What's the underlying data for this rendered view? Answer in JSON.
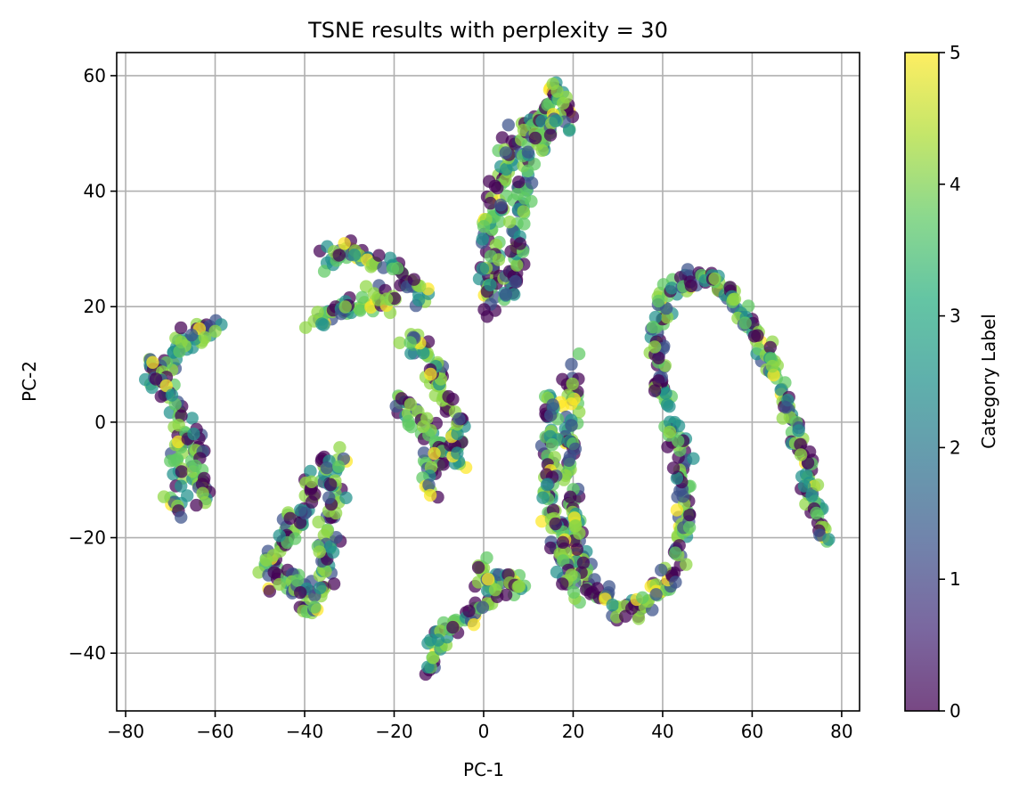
{
  "chart_data": {
    "type": "scatter",
    "title": "TSNE results with perplexity = 30",
    "xlabel": "PC-1",
    "ylabel": "PC-2",
    "xlim": [
      -82,
      84
    ],
    "ylim": [
      -50,
      64
    ],
    "xticks": [
      -80,
      -60,
      -40,
      -20,
      0,
      20,
      40,
      60,
      80
    ],
    "xtick_labels": [
      "−80",
      "−60",
      "−40",
      "−20",
      "0",
      "20",
      "40",
      "60",
      "80"
    ],
    "yticks": [
      -40,
      -20,
      0,
      20,
      40,
      60
    ],
    "ytick_labels": [
      "−40",
      "−20",
      "0",
      "20",
      "40",
      "60"
    ],
    "grid": true,
    "colorbar": {
      "label": "Category Label",
      "range": [
        0,
        5
      ],
      "ticks": [
        0,
        1,
        2,
        3,
        4,
        5
      ],
      "tick_labels": [
        "0",
        "1",
        "2",
        "3",
        "4",
        "5"
      ],
      "colormap": "viridis"
    },
    "clusters": [
      {
        "name": "left-arc",
        "path": [
          [
            -59,
            18
          ],
          [
            -63,
            16
          ],
          [
            -68,
            13
          ],
          [
            -72,
            10
          ],
          [
            -75,
            8
          ],
          [
            -73,
            7
          ],
          [
            -69,
            4
          ],
          [
            -67,
            0
          ],
          [
            -67,
            -4
          ],
          [
            -68,
            -9
          ],
          [
            -69,
            -14
          ],
          [
            -68,
            -15
          ]
        ],
        "width": 2.2
      },
      {
        "name": "left-bar",
        "path": [
          [
            -64,
            -2
          ],
          [
            -64,
            -7
          ],
          [
            -63,
            -11
          ],
          [
            -62,
            -14
          ]
        ],
        "width": 1.5
      },
      {
        "name": "lower-left-band",
        "path": [
          [
            -50,
            -25
          ],
          [
            -46,
            -22
          ],
          [
            -42,
            -17
          ],
          [
            -39,
            -12
          ],
          [
            -36,
            -8
          ],
          [
            -32,
            -6
          ]
        ],
        "width": 2.0
      },
      {
        "name": "lower-left-band-2",
        "path": [
          [
            -48,
            -28
          ],
          [
            -43,
            -27
          ],
          [
            -40,
            -30
          ],
          [
            -39,
            -33
          ],
          [
            -37,
            -28
          ],
          [
            -35,
            -22
          ],
          [
            -34,
            -16
          ],
          [
            -33,
            -10
          ]
        ],
        "width": 2.0
      },
      {
        "name": "upper-mid-arc",
        "path": [
          [
            -38,
            17
          ],
          [
            -34,
            19
          ],
          [
            -30,
            20
          ],
          [
            -26,
            21
          ],
          [
            -22,
            21
          ],
          [
            -19,
            20
          ]
        ],
        "width": 1.8
      },
      {
        "name": "upper-mid-arc-2",
        "path": [
          [
            -36,
            27
          ],
          [
            -32,
            29
          ],
          [
            -28,
            29
          ],
          [
            -24,
            28
          ],
          [
            -20,
            26
          ],
          [
            -16,
            24
          ],
          [
            -13,
            22
          ]
        ],
        "width": 1.8
      },
      {
        "name": "mid-snake",
        "path": [
          [
            -20,
            4
          ],
          [
            -17,
            2
          ],
          [
            -14,
            0
          ],
          [
            -11,
            -3
          ],
          [
            -9,
            -6
          ],
          [
            -7,
            -7
          ],
          [
            -5,
            -5
          ],
          [
            -6,
            0
          ],
          [
            -9,
            4
          ],
          [
            -11,
            8
          ],
          [
            -12,
            12
          ],
          [
            -15,
            14
          ],
          [
            -18,
            16
          ]
        ],
        "width": 2.0
      },
      {
        "name": "mid-snake-2",
        "path": [
          [
            -13,
            -6
          ],
          [
            -12,
            -9
          ],
          [
            -11,
            -12
          ]
        ],
        "width": 1.6
      },
      {
        "name": "top-column",
        "path": [
          [
            1,
            19
          ],
          [
            1,
            23
          ],
          [
            1,
            28
          ],
          [
            1,
            33
          ],
          [
            3,
            37
          ],
          [
            3,
            41
          ],
          [
            5,
            45
          ],
          [
            8,
            49
          ],
          [
            11,
            52
          ],
          [
            14,
            55
          ],
          [
            16,
            58
          ],
          [
            19,
            52
          ]
        ],
        "width": 2.0
      },
      {
        "name": "top-column-2",
        "path": [
          [
            5,
            20
          ],
          [
            6,
            23
          ],
          [
            7,
            27
          ],
          [
            8,
            31
          ],
          [
            8,
            35
          ],
          [
            8,
            39
          ],
          [
            9,
            43
          ],
          [
            10,
            46
          ],
          [
            12,
            49
          ],
          [
            15,
            52
          ],
          [
            17,
            54
          ]
        ],
        "width": 2.0
      },
      {
        "name": "bottom-cluster",
        "path": [
          [
            -12,
            -43
          ],
          [
            -11,
            -40
          ],
          [
            -9,
            -37
          ],
          [
            -6,
            -35
          ],
          [
            -3,
            -33
          ],
          [
            0,
            -32
          ],
          [
            2,
            -29
          ],
          [
            4,
            -27
          ],
          [
            7,
            -26
          ],
          [
            7,
            -30
          ]
        ],
        "width": 1.8
      },
      {
        "name": "bottom-cluster-2",
        "path": [
          [
            -2,
            -27
          ],
          [
            0,
            -25
          ],
          [
            1,
            -28
          ]
        ],
        "width": 1.5
      },
      {
        "name": "big-s-curve",
        "path": [
          [
            20,
            9
          ],
          [
            20,
            4
          ],
          [
            19,
            -3
          ],
          [
            19,
            -10
          ],
          [
            20,
            -17
          ],
          [
            21,
            -22
          ],
          [
            22,
            -26
          ],
          [
            24,
            -29
          ],
          [
            27,
            -31
          ],
          [
            31,
            -33
          ],
          [
            35,
            -32
          ],
          [
            38,
            -30
          ],
          [
            41,
            -27
          ],
          [
            43,
            -23
          ],
          [
            45,
            -18
          ],
          [
            45,
            -12
          ],
          [
            44,
            -6
          ],
          [
            42,
            0
          ],
          [
            40,
            5
          ],
          [
            39,
            10
          ],
          [
            39,
            15
          ],
          [
            40,
            20
          ],
          [
            43,
            23
          ],
          [
            46,
            25
          ],
          [
            50,
            25
          ],
          [
            54,
            23
          ],
          [
            58,
            19
          ],
          [
            61,
            15
          ],
          [
            64,
            10
          ],
          [
            67,
            5
          ],
          [
            69,
            0
          ],
          [
            71,
            -5
          ],
          [
            73,
            -11
          ],
          [
            75,
            -16
          ],
          [
            76,
            -21
          ]
        ],
        "width": 1.8
      },
      {
        "name": "s-left-leg",
        "path": [
          [
            15,
            5
          ],
          [
            15,
            -2
          ],
          [
            14,
            -9
          ],
          [
            15,
            -16
          ],
          [
            17,
            -21
          ],
          [
            18,
            -26
          ],
          [
            21,
            -30
          ]
        ],
        "width": 1.6
      }
    ]
  }
}
